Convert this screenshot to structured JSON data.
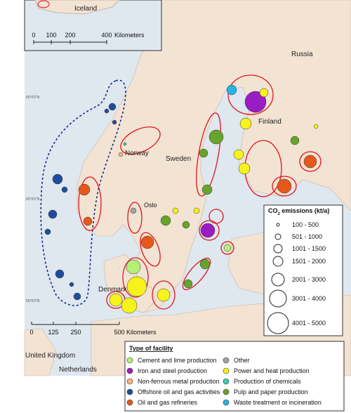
{
  "map": {
    "countries": {
      "russia": "Russia",
      "finland": "Finland",
      "norway": "Norway",
      "sweden": "Sweden",
      "denmark": "Denmark",
      "united_kingdom": "United Kingdom",
      "netherlands": "Netherlands"
    },
    "cities": {
      "oslo": "Oslo"
    },
    "lat_labels": [
      "65°0'0\"N",
      "60°0'0\"N",
      "55°0'0\"N"
    ],
    "scale_bar": {
      "ticks": [
        "0",
        "125",
        "250",
        "500"
      ],
      "unit": "Kilometers"
    }
  },
  "inset": {
    "label": "Iceland",
    "scale_bar": {
      "ticks": [
        "0",
        "100",
        "200",
        "400"
      ],
      "unit": "Kilometers"
    }
  },
  "size_legend": {
    "title": {
      "main": "CO",
      "subscript": "2",
      "rest": " emissions (kt/a)"
    },
    "classes": [
      "100 - 500",
      "501 - 1000",
      "1001 - 1500",
      "1501 - 2000",
      "2001 - 3000",
      "3001 - 4000",
      "4001 - 5000"
    ]
  },
  "type_legend": {
    "title": "Type of facility",
    "items": [
      {
        "label": "Cement and lime production",
        "color": "#b5ef78"
      },
      {
        "label": "Iron and steel production",
        "color": "#9a1dc4"
      },
      {
        "label": "Non-ferrous metal production",
        "color": "#f5b57a"
      },
      {
        "label": "Offshore oil and gas activities",
        "color": "#1f4d9e"
      },
      {
        "label": "Oil and gas refineries",
        "color": "#e5581c"
      },
      {
        "label": "Other",
        "color": "#a3a3a3"
      },
      {
        "label": "Power and heat production",
        "color": "#f6f21c"
      },
      {
        "label": "Production of chemicals",
        "color": "#3ed0ae"
      },
      {
        "label": "Pulp and paper production",
        "color": "#67a42b"
      },
      {
        "label": "Waste treatment or incineration",
        "color": "#27b3e4"
      }
    ]
  }
}
